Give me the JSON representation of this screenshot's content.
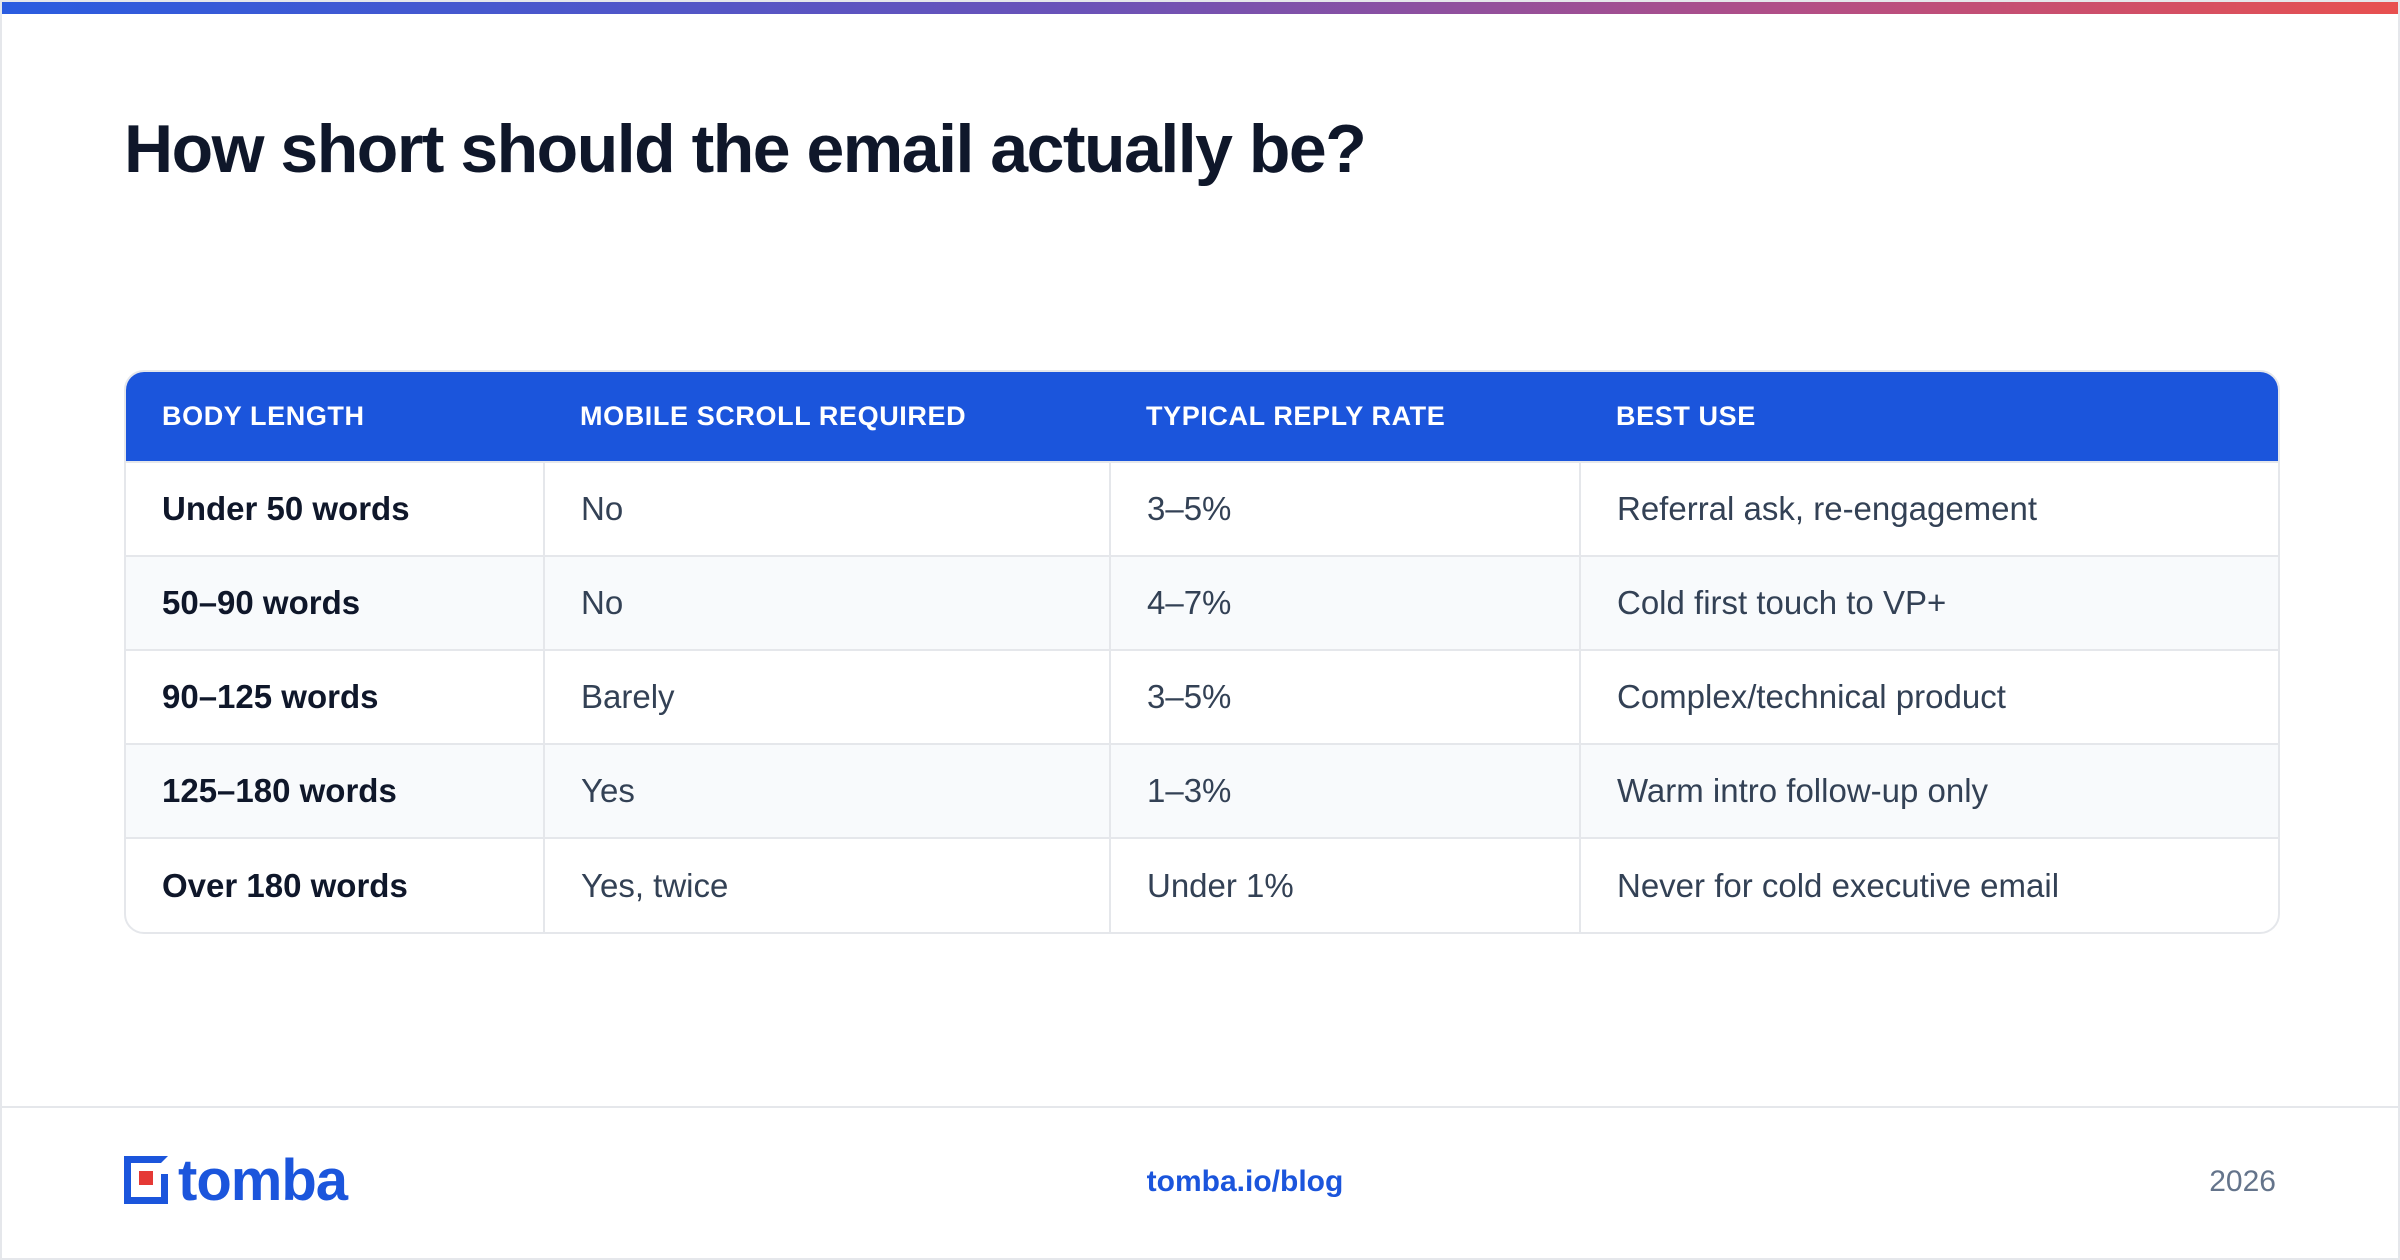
{
  "title": "How short should the email actually be?",
  "table": {
    "headers": [
      "BODY LENGTH",
      "MOBILE SCROLL REQUIRED",
      "TYPICAL REPLY RATE",
      "BEST USE"
    ],
    "rows": [
      [
        "Under 50 words",
        "No",
        "3–5%",
        "Referral ask, re-engagement"
      ],
      [
        "50–90 words",
        "No",
        "4–7%",
        "Cold first touch to VP+"
      ],
      [
        "90–125 words",
        "Barely",
        "3–5%",
        "Complex/technical product"
      ],
      [
        "125–180 words",
        "Yes",
        "1–3%",
        "Warm intro follow-up only"
      ],
      [
        "Over 180 words",
        "Yes, twice",
        "Under 1%",
        "Never for cold executive email"
      ]
    ]
  },
  "footer": {
    "logo_text": "tomba",
    "link": "tomba.io/blog",
    "year": "2026"
  },
  "colors": {
    "accent": "#1b55dc",
    "logo_dot": "#e53935",
    "title": "#0f172a"
  }
}
